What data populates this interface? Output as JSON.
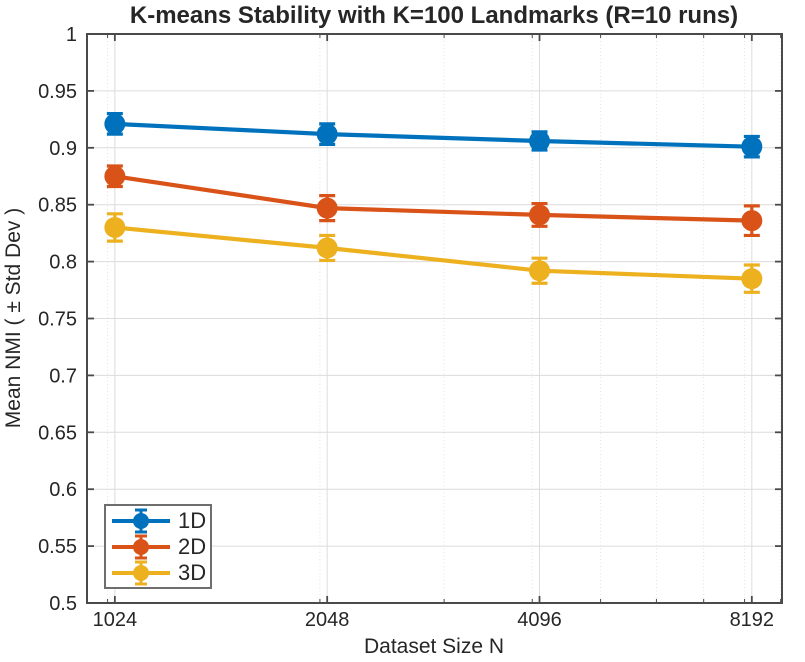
{
  "figure": {
    "background": "#ffffff",
    "text_color": "#262626",
    "axis_color": "#4a4a4a",
    "grid_color": "#dcdcdc",
    "minor_grid_color": "#e2e2e2",
    "legend_border_color": "#6e6e6e"
  },
  "chart_data": {
    "type": "line",
    "subtype": "errorbar",
    "title": "K-means Stability with K=100 Landmarks (R=10 runs)",
    "xlabel": "Dataset Size N",
    "ylabel": "Mean NMI ( ± Std Dev )",
    "xscale": "log",
    "grid": true,
    "x": [
      1024,
      2048,
      4096,
      8192
    ],
    "xticklabels": [
      "1024",
      "2048",
      "4096",
      "8192"
    ],
    "xlim": [
      935,
      9040
    ],
    "ylim": [
      0.5,
      1.0
    ],
    "yticks": [
      0.5,
      0.55,
      0.6,
      0.65,
      0.7,
      0.75,
      0.8,
      0.85,
      0.9,
      0.95,
      1
    ],
    "yticklabels": [
      "0.5",
      "0.55",
      "0.6",
      "0.65",
      "0.7",
      "0.75",
      "0.8",
      "0.85",
      "0.9",
      "0.95",
      "1"
    ],
    "minor_x_gridlines": [
      1000,
      2000,
      3000,
      4000,
      5000,
      6000,
      7000,
      8000,
      9000
    ],
    "legend_position": "lower-left",
    "series": [
      {
        "name": "1D",
        "color": "#0072BD",
        "values": [
          0.921,
          0.912,
          0.906,
          0.901
        ],
        "std": [
          0.009,
          0.009,
          0.008,
          0.009
        ]
      },
      {
        "name": "2D",
        "color": "#D95319",
        "values": [
          0.875,
          0.847,
          0.841,
          0.836
        ],
        "std": [
          0.009,
          0.011,
          0.01,
          0.013
        ]
      },
      {
        "name": "3D",
        "color": "#EDB120",
        "values": [
          0.83,
          0.812,
          0.792,
          0.785
        ],
        "std": [
          0.012,
          0.011,
          0.011,
          0.012
        ]
      }
    ]
  }
}
